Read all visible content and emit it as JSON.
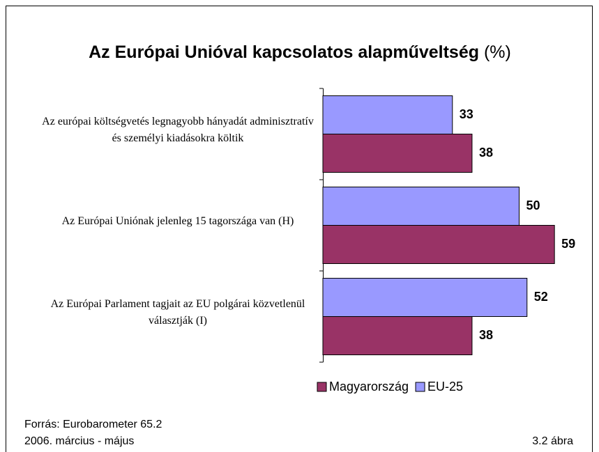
{
  "chart_data": {
    "type": "bar",
    "orientation": "horizontal",
    "title": "Az Európai Unióval kapcsolatos alapműveltség",
    "title_unit": "(%)",
    "categories": [
      "Az európai költségvetés legnagyobb hányadát adminisztratív és személyi kiadásokra költik",
      "Az Európai Uniónak jelenleg 15 tagországa van (H)",
      "Az Európai Parlament tagjait az EU polgárai közvetlenül választják (I)"
    ],
    "series": [
      {
        "name": "Magyarország",
        "color": "#993366",
        "values": [
          38,
          59,
          38
        ]
      },
      {
        "name": "EU-25",
        "color": "#9999ff",
        "values": [
          33,
          50,
          52
        ]
      }
    ],
    "xlim": [
      0,
      70
    ],
    "legend": "bottom",
    "source": "Forrás: Eurobarometer 65.2",
    "period": "2006. március - május",
    "figure_label": "3.2 ábra"
  }
}
